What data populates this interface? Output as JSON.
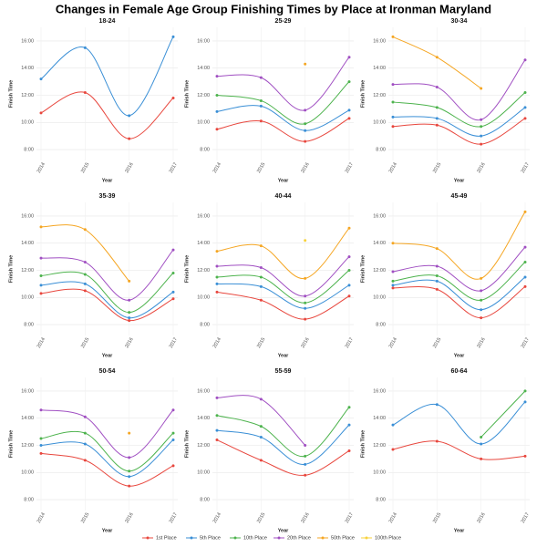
{
  "title": "Changes in Female Age Group Finishing Times by Place at Ironman Maryland",
  "legend": "bottom",
  "chart_data": [
    {
      "type": "line",
      "title": "18-24",
      "xlabel": "Year",
      "ylabel": "Finish Time",
      "categories": [
        "2014",
        "2015",
        "2016",
        "2017"
      ],
      "ylim": [
        7.2,
        17
      ],
      "yticks": [
        {
          "value": 8,
          "label": "8:00"
        },
        {
          "value": 10,
          "label": "10:00"
        },
        {
          "value": 12,
          "label": "12:00"
        },
        {
          "value": 14,
          "label": "14:00"
        },
        {
          "value": 16,
          "label": "16:00"
        }
      ],
      "grid": true,
      "series": [
        {
          "name": "1st Place",
          "color": "#e8473e",
          "values": [
            10.7,
            12.2,
            8.8,
            11.8
          ]
        },
        {
          "name": "5th Place",
          "color": "#3a8fd6",
          "values": [
            13.2,
            15.5,
            10.5,
            16.3
          ]
        },
        {
          "name": "10th Place",
          "color": "#4db34d",
          "values": [
            null,
            null,
            null,
            null
          ]
        },
        {
          "name": "20th Place",
          "color": "#a04fc2",
          "values": [
            null,
            null,
            null,
            null
          ]
        },
        {
          "name": "50th Place",
          "color": "#f5a623",
          "values": [
            null,
            null,
            null,
            null
          ]
        },
        {
          "name": "100th Place",
          "color": "#f7d23b",
          "values": [
            null,
            null,
            null,
            null
          ]
        }
      ]
    },
    {
      "type": "line",
      "title": "25-29",
      "xlabel": "Year",
      "ylabel": "Finish Time",
      "categories": [
        "2014",
        "2015",
        "2016",
        "2017"
      ],
      "ylim": [
        7.2,
        17
      ],
      "yticks": [
        {
          "value": 8,
          "label": "8:00"
        },
        {
          "value": 10,
          "label": "10:00"
        },
        {
          "value": 12,
          "label": "12:00"
        },
        {
          "value": 14,
          "label": "14:00"
        },
        {
          "value": 16,
          "label": "16:00"
        }
      ],
      "grid": true,
      "series": [
        {
          "name": "1st Place",
          "color": "#e8473e",
          "values": [
            9.5,
            10.1,
            8.6,
            10.3
          ]
        },
        {
          "name": "5th Place",
          "color": "#3a8fd6",
          "values": [
            10.8,
            11.2,
            9.4,
            10.9
          ]
        },
        {
          "name": "10th Place",
          "color": "#4db34d",
          "values": [
            12.0,
            11.6,
            9.9,
            13.0
          ]
        },
        {
          "name": "20th Place",
          "color": "#a04fc2",
          "values": [
            13.4,
            13.3,
            10.9,
            14.8
          ]
        },
        {
          "name": "50th Place",
          "color": "#f5a623",
          "values": [
            null,
            null,
            14.3,
            null
          ]
        },
        {
          "name": "100th Place",
          "color": "#f7d23b",
          "values": [
            null,
            null,
            null,
            null
          ]
        }
      ]
    },
    {
      "type": "line",
      "title": "30-34",
      "xlabel": "Year",
      "ylabel": "Finish Time",
      "categories": [
        "2014",
        "2015",
        "2016",
        "2017"
      ],
      "ylim": [
        7.2,
        17
      ],
      "yticks": [
        {
          "value": 8,
          "label": "8:00"
        },
        {
          "value": 10,
          "label": "10:00"
        },
        {
          "value": 12,
          "label": "12:00"
        },
        {
          "value": 14,
          "label": "14:00"
        },
        {
          "value": 16,
          "label": "16:00"
        }
      ],
      "grid": true,
      "series": [
        {
          "name": "1st Place",
          "color": "#e8473e",
          "values": [
            9.7,
            9.8,
            8.4,
            10.3
          ]
        },
        {
          "name": "5th Place",
          "color": "#3a8fd6",
          "values": [
            10.4,
            10.3,
            9.0,
            11.1
          ]
        },
        {
          "name": "10th Place",
          "color": "#4db34d",
          "values": [
            11.5,
            11.1,
            9.7,
            12.2
          ]
        },
        {
          "name": "20th Place",
          "color": "#a04fc2",
          "values": [
            12.8,
            12.6,
            10.2,
            14.6
          ]
        },
        {
          "name": "50th Place",
          "color": "#f5a623",
          "values": [
            16.3,
            14.8,
            12.5,
            null
          ]
        },
        {
          "name": "100th Place",
          "color": "#f7d23b",
          "values": [
            null,
            null,
            null,
            null
          ]
        }
      ]
    },
    {
      "type": "line",
      "title": "35-39",
      "xlabel": "Year",
      "ylabel": "Finish Time",
      "categories": [
        "2014",
        "2015",
        "2016",
        "2017"
      ],
      "ylim": [
        7.2,
        17
      ],
      "yticks": [
        {
          "value": 8,
          "label": "8:00"
        },
        {
          "value": 10,
          "label": "10:00"
        },
        {
          "value": 12,
          "label": "12:00"
        },
        {
          "value": 14,
          "label": "14:00"
        },
        {
          "value": 16,
          "label": "16:00"
        }
      ],
      "grid": true,
      "series": [
        {
          "name": "1st Place",
          "color": "#e8473e",
          "values": [
            10.3,
            10.5,
            8.3,
            9.9
          ]
        },
        {
          "name": "5th Place",
          "color": "#3a8fd6",
          "values": [
            10.9,
            11.0,
            8.5,
            10.4
          ]
        },
        {
          "name": "10th Place",
          "color": "#4db34d",
          "values": [
            11.6,
            11.7,
            8.9,
            11.8
          ]
        },
        {
          "name": "20th Place",
          "color": "#a04fc2",
          "values": [
            12.9,
            12.6,
            9.8,
            13.5
          ]
        },
        {
          "name": "50th Place",
          "color": "#f5a623",
          "values": [
            15.2,
            15.0,
            11.2,
            null
          ]
        },
        {
          "name": "100th Place",
          "color": "#f7d23b",
          "values": [
            null,
            null,
            null,
            null
          ]
        }
      ]
    },
    {
      "type": "line",
      "title": "40-44",
      "xlabel": "Year",
      "ylabel": "Finish Time",
      "categories": [
        "2014",
        "2015",
        "2016",
        "2017"
      ],
      "ylim": [
        7.2,
        17
      ],
      "yticks": [
        {
          "value": 8,
          "label": "8:00"
        },
        {
          "value": 10,
          "label": "10:00"
        },
        {
          "value": 12,
          "label": "12:00"
        },
        {
          "value": 14,
          "label": "14:00"
        },
        {
          "value": 16,
          "label": "16:00"
        }
      ],
      "grid": true,
      "series": [
        {
          "name": "1st Place",
          "color": "#e8473e",
          "values": [
            10.4,
            9.8,
            8.4,
            10.1
          ]
        },
        {
          "name": "5th Place",
          "color": "#3a8fd6",
          "values": [
            11.0,
            10.8,
            9.2,
            10.9
          ]
        },
        {
          "name": "10th Place",
          "color": "#4db34d",
          "values": [
            11.5,
            11.5,
            9.6,
            12.0
          ]
        },
        {
          "name": "20th Place",
          "color": "#a04fc2",
          "values": [
            12.3,
            12.2,
            10.1,
            13.0
          ]
        },
        {
          "name": "50th Place",
          "color": "#f5a623",
          "values": [
            13.4,
            13.8,
            11.4,
            15.1
          ]
        },
        {
          "name": "100th Place",
          "color": "#f7d23b",
          "values": [
            null,
            null,
            14.2,
            null
          ]
        }
      ]
    },
    {
      "type": "line",
      "title": "45-49",
      "xlabel": "Year",
      "ylabel": "Finish Time",
      "categories": [
        "2014",
        "2015",
        "2016",
        "2017"
      ],
      "ylim": [
        7.2,
        17
      ],
      "yticks": [
        {
          "value": 8,
          "label": "8:00"
        },
        {
          "value": 10,
          "label": "10:00"
        },
        {
          "value": 12,
          "label": "12:00"
        },
        {
          "value": 14,
          "label": "14:00"
        },
        {
          "value": 16,
          "label": "16:00"
        }
      ],
      "grid": true,
      "series": [
        {
          "name": "1st Place",
          "color": "#e8473e",
          "values": [
            10.7,
            10.6,
            8.5,
            10.8
          ]
        },
        {
          "name": "5th Place",
          "color": "#3a8fd6",
          "values": [
            10.9,
            11.2,
            9.1,
            11.5
          ]
        },
        {
          "name": "10th Place",
          "color": "#4db34d",
          "values": [
            11.2,
            11.6,
            9.8,
            12.6
          ]
        },
        {
          "name": "20th Place",
          "color": "#a04fc2",
          "values": [
            11.9,
            12.3,
            10.5,
            13.7
          ]
        },
        {
          "name": "50th Place",
          "color": "#f5a623",
          "values": [
            14.0,
            13.6,
            11.4,
            16.3
          ]
        },
        {
          "name": "100th Place",
          "color": "#f7d23b",
          "values": [
            null,
            null,
            null,
            null
          ]
        }
      ]
    },
    {
      "type": "line",
      "title": "50-54",
      "xlabel": "Year",
      "ylabel": "Finish Time",
      "categories": [
        "2014",
        "2015",
        "2016",
        "2017"
      ],
      "ylim": [
        7.2,
        17
      ],
      "yticks": [
        {
          "value": 8,
          "label": "8:00"
        },
        {
          "value": 10,
          "label": "10:00"
        },
        {
          "value": 12,
          "label": "12:00"
        },
        {
          "value": 14,
          "label": "14:00"
        },
        {
          "value": 16,
          "label": "16:00"
        }
      ],
      "grid": true,
      "series": [
        {
          "name": "1st Place",
          "color": "#e8473e",
          "values": [
            11.4,
            10.9,
            9.0,
            10.5
          ]
        },
        {
          "name": "5th Place",
          "color": "#3a8fd6",
          "values": [
            12.0,
            12.1,
            9.7,
            12.4
          ]
        },
        {
          "name": "10th Place",
          "color": "#4db34d",
          "values": [
            12.5,
            12.9,
            10.1,
            12.9
          ]
        },
        {
          "name": "20th Place",
          "color": "#a04fc2",
          "values": [
            14.6,
            14.1,
            11.1,
            14.6
          ]
        },
        {
          "name": "50th Place",
          "color": "#f5a623",
          "values": [
            null,
            null,
            12.9,
            null
          ]
        },
        {
          "name": "100th Place",
          "color": "#f7d23b",
          "values": [
            null,
            null,
            null,
            null
          ]
        }
      ]
    },
    {
      "type": "line",
      "title": "55-59",
      "xlabel": "Year",
      "ylabel": "Finish Time",
      "categories": [
        "2014",
        "2015",
        "2016",
        "2017"
      ],
      "ylim": [
        7.2,
        17
      ],
      "yticks": [
        {
          "value": 8,
          "label": "8:00"
        },
        {
          "value": 10,
          "label": "10:00"
        },
        {
          "value": 12,
          "label": "12:00"
        },
        {
          "value": 14,
          "label": "14:00"
        },
        {
          "value": 16,
          "label": "16:00"
        }
      ],
      "grid": true,
      "series": [
        {
          "name": "1st Place",
          "color": "#e8473e",
          "values": [
            12.4,
            10.9,
            9.8,
            11.6
          ]
        },
        {
          "name": "5th Place",
          "color": "#3a8fd6",
          "values": [
            13.1,
            12.6,
            10.6,
            13.5
          ]
        },
        {
          "name": "10th Place",
          "color": "#4db34d",
          "values": [
            14.2,
            13.4,
            11.2,
            14.8
          ]
        },
        {
          "name": "20th Place",
          "color": "#a04fc2",
          "values": [
            15.5,
            15.4,
            12.0,
            null
          ]
        },
        {
          "name": "50th Place",
          "color": "#f5a623",
          "values": [
            null,
            null,
            null,
            null
          ]
        },
        {
          "name": "100th Place",
          "color": "#f7d23b",
          "values": [
            null,
            null,
            null,
            null
          ]
        }
      ]
    },
    {
      "type": "line",
      "title": "60-64",
      "xlabel": "Year",
      "ylabel": "Finish Time",
      "categories": [
        "2014",
        "2015",
        "2016",
        "2017"
      ],
      "ylim": [
        7.2,
        17
      ],
      "yticks": [
        {
          "value": 8,
          "label": "8:00"
        },
        {
          "value": 10,
          "label": "10:00"
        },
        {
          "value": 12,
          "label": "12:00"
        },
        {
          "value": 14,
          "label": "14:00"
        },
        {
          "value": 16,
          "label": "16:00"
        }
      ],
      "grid": true,
      "series": [
        {
          "name": "1st Place",
          "color": "#e8473e",
          "values": [
            11.7,
            12.3,
            11.0,
            11.2
          ]
        },
        {
          "name": "5th Place",
          "color": "#3a8fd6",
          "values": [
            13.5,
            15.0,
            12.1,
            15.2
          ]
        },
        {
          "name": "10th Place",
          "color": "#4db34d",
          "values": [
            null,
            null,
            12.6,
            16.0
          ]
        },
        {
          "name": "20th Place",
          "color": "#a04fc2",
          "values": [
            null,
            null,
            null,
            null
          ]
        },
        {
          "name": "50th Place",
          "color": "#f5a623",
          "values": [
            null,
            null,
            null,
            null
          ]
        },
        {
          "name": "100th Place",
          "color": "#f7d23b",
          "values": [
            null,
            null,
            null,
            null
          ]
        }
      ]
    }
  ]
}
